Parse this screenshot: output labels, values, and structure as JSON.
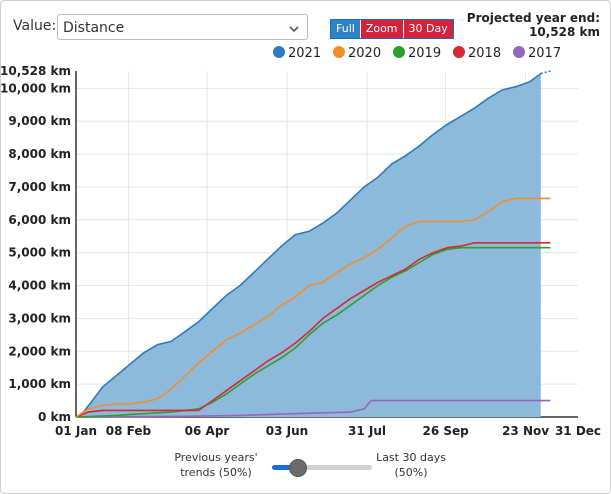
{
  "controls": {
    "value_label": "Value:",
    "select_value": "Distance",
    "buttons": {
      "full": "Full",
      "zoom": "Zoom",
      "thirty_day": "30 Day"
    },
    "projected_label": "Projected year end:",
    "projected_value": "10,528 km"
  },
  "colors": {
    "2021": "#2f7bbd",
    "2021_fill": "#8db9db",
    "2020": "#f28e2b",
    "2019": "#2ca02c",
    "2018": "#d62734",
    "2017": "#9467bd"
  },
  "chart_data": {
    "type": "line",
    "title": "",
    "xlabel": "",
    "ylabel": "",
    "x_unit": "day of year",
    "xlim": [
      1,
      365
    ],
    "ylim": [
      0,
      10528
    ],
    "y_ticks": [
      {
        "value": 0,
        "label": "0 km"
      },
      {
        "value": 1000,
        "label": "1,000 km"
      },
      {
        "value": 2000,
        "label": "2,000 km"
      },
      {
        "value": 3000,
        "label": "3,000 km"
      },
      {
        "value": 4000,
        "label": "4,000 km"
      },
      {
        "value": 5000,
        "label": "5,000 km"
      },
      {
        "value": 6000,
        "label": "6,000 km"
      },
      {
        "value": 7000,
        "label": "7,000 km"
      },
      {
        "value": 8000,
        "label": "8,000 km"
      },
      {
        "value": 9000,
        "label": "9,000 km"
      },
      {
        "value": 10000,
        "label": "10,000 km"
      },
      {
        "value": 10528,
        "label": "10,528 km"
      }
    ],
    "x_ticks": [
      {
        "day": 1,
        "label": "01 Jan"
      },
      {
        "day": 39,
        "label": "08 Feb"
      },
      {
        "day": 96,
        "label": "06 Apr"
      },
      {
        "day": 154,
        "label": "03 Jun"
      },
      {
        "day": 212,
        "label": "31 Jul"
      },
      {
        "day": 269,
        "label": "26 Sep"
      },
      {
        "day": 327,
        "label": "23 Nov"
      },
      {
        "day": 365,
        "label": "31 Dec"
      }
    ],
    "legend": [
      "2021",
      "2020",
      "2019",
      "2018",
      "2017"
    ],
    "series": [
      {
        "name": "2021",
        "area": true,
        "points": [
          [
            1,
            0
          ],
          [
            5,
            80
          ],
          [
            12,
            450
          ],
          [
            20,
            900
          ],
          [
            30,
            1250
          ],
          [
            40,
            1600
          ],
          [
            50,
            1950
          ],
          [
            60,
            2200
          ],
          [
            70,
            2300
          ],
          [
            80,
            2600
          ],
          [
            90,
            2900
          ],
          [
            100,
            3300
          ],
          [
            110,
            3700
          ],
          [
            120,
            4000
          ],
          [
            130,
            4400
          ],
          [
            140,
            4800
          ],
          [
            150,
            5200
          ],
          [
            160,
            5550
          ],
          [
            170,
            5650
          ],
          [
            180,
            5900
          ],
          [
            190,
            6200
          ],
          [
            200,
            6600
          ],
          [
            210,
            7000
          ],
          [
            220,
            7300
          ],
          [
            230,
            7700
          ],
          [
            240,
            7950
          ],
          [
            250,
            8250
          ],
          [
            260,
            8600
          ],
          [
            270,
            8900
          ],
          [
            280,
            9150
          ],
          [
            290,
            9400
          ],
          [
            300,
            9700
          ],
          [
            310,
            9950
          ],
          [
            320,
            10050
          ],
          [
            330,
            10200
          ],
          [
            338,
            10450
          ]
        ],
        "projection": [
          [
            338,
            10450
          ],
          [
            345,
            10528
          ]
        ]
      },
      {
        "name": "2020",
        "points": [
          [
            1,
            0
          ],
          [
            10,
            250
          ],
          [
            20,
            350
          ],
          [
            30,
            400
          ],
          [
            40,
            400
          ],
          [
            50,
            450
          ],
          [
            60,
            550
          ],
          [
            70,
            850
          ],
          [
            80,
            1250
          ],
          [
            90,
            1650
          ],
          [
            100,
            2000
          ],
          [
            110,
            2350
          ],
          [
            120,
            2550
          ],
          [
            130,
            2800
          ],
          [
            140,
            3050
          ],
          [
            150,
            3400
          ],
          [
            160,
            3650
          ],
          [
            170,
            4000
          ],
          [
            180,
            4100
          ],
          [
            190,
            4400
          ],
          [
            200,
            4650
          ],
          [
            210,
            4850
          ],
          [
            220,
            5100
          ],
          [
            230,
            5450
          ],
          [
            240,
            5800
          ],
          [
            250,
            5950
          ],
          [
            260,
            5950
          ],
          [
            270,
            5950
          ],
          [
            280,
            5950
          ],
          [
            290,
            6000
          ],
          [
            300,
            6250
          ],
          [
            310,
            6550
          ],
          [
            320,
            6650
          ],
          [
            335,
            6650
          ],
          [
            345,
            6650
          ]
        ]
      },
      {
        "name": "2019",
        "points": [
          [
            1,
            0
          ],
          [
            30,
            50
          ],
          [
            50,
            100
          ],
          [
            70,
            150
          ],
          [
            90,
            250
          ],
          [
            100,
            450
          ],
          [
            110,
            700
          ],
          [
            120,
            1000
          ],
          [
            130,
            1300
          ],
          [
            140,
            1550
          ],
          [
            150,
            1800
          ],
          [
            160,
            2100
          ],
          [
            170,
            2500
          ],
          [
            180,
            2850
          ],
          [
            190,
            3100
          ],
          [
            200,
            3400
          ],
          [
            210,
            3700
          ],
          [
            220,
            4000
          ],
          [
            230,
            4250
          ],
          [
            240,
            4450
          ],
          [
            250,
            4700
          ],
          [
            260,
            4950
          ],
          [
            270,
            5100
          ],
          [
            280,
            5150
          ],
          [
            300,
            5150
          ],
          [
            320,
            5150
          ],
          [
            345,
            5150
          ]
        ]
      },
      {
        "name": "2018",
        "points": [
          [
            1,
            0
          ],
          [
            10,
            150
          ],
          [
            20,
            200
          ],
          [
            30,
            200
          ],
          [
            50,
            200
          ],
          [
            70,
            200
          ],
          [
            90,
            200
          ],
          [
            100,
            500
          ],
          [
            110,
            800
          ],
          [
            120,
            1100
          ],
          [
            130,
            1400
          ],
          [
            140,
            1700
          ],
          [
            150,
            1950
          ],
          [
            160,
            2250
          ],
          [
            170,
            2600
          ],
          [
            180,
            3000
          ],
          [
            190,
            3300
          ],
          [
            200,
            3600
          ],
          [
            210,
            3850
          ],
          [
            220,
            4100
          ],
          [
            230,
            4300
          ],
          [
            240,
            4500
          ],
          [
            250,
            4800
          ],
          [
            260,
            5000
          ],
          [
            270,
            5150
          ],
          [
            280,
            5200
          ],
          [
            290,
            5300
          ],
          [
            300,
            5300
          ],
          [
            320,
            5300
          ],
          [
            345,
            5300
          ]
        ]
      },
      {
        "name": "2017",
        "points": [
          [
            1,
            0
          ],
          [
            40,
            10
          ],
          [
            80,
            20
          ],
          [
            120,
            50
          ],
          [
            160,
            100
          ],
          [
            200,
            150
          ],
          [
            210,
            250
          ],
          [
            215,
            500
          ],
          [
            250,
            500
          ],
          [
            300,
            500
          ],
          [
            345,
            500
          ]
        ]
      }
    ]
  },
  "footer": {
    "left_line1": "Previous years'",
    "left_line2": "trends (50%)",
    "right_line1": "Last 30 days",
    "right_line2": "(50%)",
    "slider_value": 0.25
  }
}
